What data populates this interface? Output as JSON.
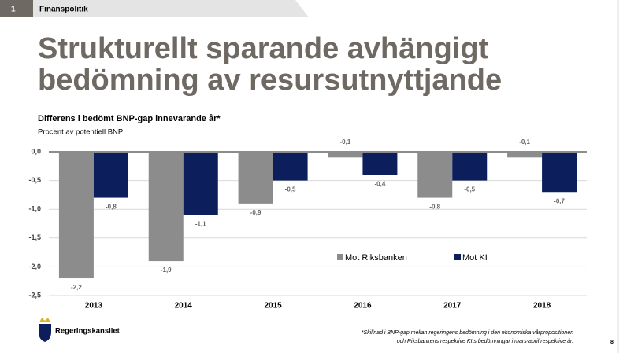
{
  "section_number": "1",
  "section": "Finanspolitik",
  "heading": "Strukturellt sparande avhängigt bedömning av resursutnyttjande",
  "chart_data": {
    "type": "bar",
    "title": "Differens i bedömt BNP-gap innevarande år*",
    "y_label": "Procent av potentiell BNP",
    "categories": [
      "2013",
      "2014",
      "2015",
      "2016",
      "2017",
      "2018"
    ],
    "series": [
      {
        "name": "Mot Riksbanken",
        "color": "#8c8c8c",
        "values": [
          -2.2,
          -1.9,
          -0.9,
          -0.1,
          -0.8,
          -0.1
        ],
        "value_labels": [
          "-2,2",
          "-1,9",
          "-0,9",
          "-0,1",
          "-0,8",
          "-0,1"
        ]
      },
      {
        "name": "Mot KI",
        "color": "#0c1f5c",
        "values": [
          -0.8,
          -1.1,
          -0.5,
          -0.4,
          -0.5,
          -0.7
        ],
        "value_labels": [
          "-0,8",
          "-1,1",
          "-0,5",
          "-0,4",
          "-0,5",
          "-0,7"
        ]
      }
    ],
    "ylim": [
      -2.5,
      0
    ],
    "yticks": [
      {
        "value": 0,
        "label": "0,0"
      },
      {
        "value": -0.5,
        "label": "-0,5"
      },
      {
        "value": -1,
        "label": "-1,0"
      },
      {
        "value": -1.5,
        "label": "-1,5"
      },
      {
        "value": -2,
        "label": "-2,0"
      },
      {
        "value": -2.5,
        "label": "-2,5"
      }
    ]
  },
  "footer": {
    "logo_text": "Regeringskansliet",
    "footnote": [
      "*Skillnad i BNP-gap mellan regeringens bedömning i den ekonomiska vårpropositionen",
      "och Riksbankens respektive KI:s bedömningar i mars-april respektive år."
    ],
    "page_number": "8"
  }
}
